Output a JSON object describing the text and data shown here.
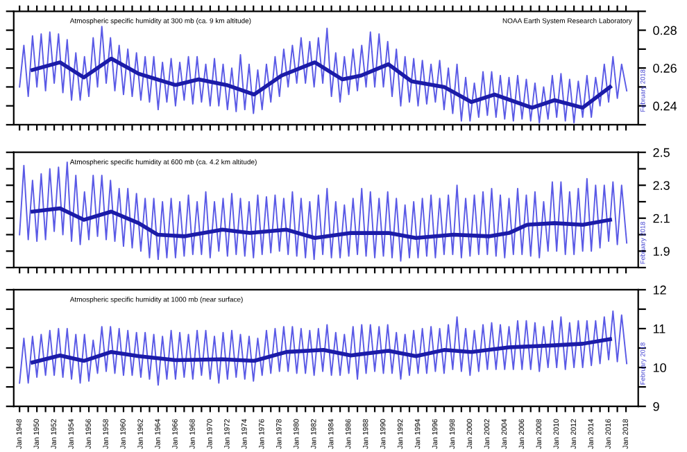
{
  "chart_data": [
    {
      "type": "line",
      "title": "Atmospheric specific humidity at 300 mb (ca. 9 km altitude)",
      "tick_labels": "y",
      "xlim": [
        "1947-05",
        "2019-06"
      ],
      "ylim": [
        0.23,
        0.29
      ],
      "x": [
        "1948-01",
        "1948-07",
        "1949-01",
        "1949-07",
        "1950-01",
        "1950-07",
        "1951-01",
        "1951-07",
        "1952-01",
        "1952-07",
        "1953-01",
        "1953-07",
        "1954-01",
        "1954-07",
        "1955-01",
        "1955-07",
        "1956-01",
        "1956-07",
        "1957-01",
        "1957-07",
        "1958-01",
        "1958-07",
        "1959-01",
        "1959-07",
        "1960-01",
        "1960-07",
        "1961-01",
        "1961-07",
        "1962-01",
        "1962-07",
        "1963-01",
        "1963-07",
        "1964-01",
        "1964-07",
        "1965-01",
        "1965-07",
        "1966-01",
        "1966-07",
        "1967-01",
        "1967-07",
        "1968-01",
        "1968-07",
        "1969-01",
        "1969-07",
        "1970-01",
        "1970-07",
        "1971-01",
        "1971-07",
        "1972-01",
        "1972-07",
        "1973-01",
        "1973-07",
        "1974-01",
        "1974-07",
        "1975-01",
        "1975-07",
        "1976-01",
        "1976-07",
        "1977-01",
        "1977-07",
        "1978-01",
        "1978-07",
        "1979-01",
        "1979-07",
        "1980-01",
        "1980-07",
        "1981-01",
        "1981-07",
        "1982-01",
        "1982-07",
        "1983-01",
        "1983-07",
        "1984-01",
        "1984-07",
        "1985-01",
        "1985-07",
        "1986-01",
        "1986-07",
        "1987-01",
        "1987-07",
        "1988-01",
        "1988-07",
        "1989-01",
        "1989-07",
        "1990-01",
        "1990-07",
        "1991-01",
        "1991-07",
        "1992-01",
        "1992-07",
        "1993-01",
        "1993-07",
        "1994-01",
        "1994-07",
        "1995-01",
        "1995-07",
        "1996-01",
        "1996-07",
        "1997-01",
        "1997-07",
        "1998-01",
        "1998-07",
        "1999-01",
        "1999-07",
        "2000-01",
        "2000-07",
        "2001-01",
        "2001-07",
        "2002-01",
        "2002-07",
        "2003-01",
        "2003-07",
        "2004-01",
        "2004-07",
        "2005-01",
        "2005-07",
        "2006-01",
        "2006-07",
        "2007-01",
        "2007-07",
        "2008-01",
        "2008-07",
        "2009-01",
        "2009-07",
        "2010-01",
        "2010-07",
        "2011-01",
        "2011-07",
        "2012-01",
        "2012-07",
        "2013-01",
        "2013-07",
        "2014-01",
        "2014-07",
        "2015-01",
        "2015-07",
        "2016-01",
        "2016-07",
        "2017-01",
        "2017-07",
        "2018-02"
      ],
      "xticks": [
        {
          "value": "1948-01",
          "label": null
        },
        {
          "value": "1949-01",
          "label": null
        },
        {
          "value": "1950-01",
          "label": null
        },
        {
          "value": "1951-01",
          "label": null
        },
        {
          "value": "1952-01",
          "label": null
        },
        {
          "value": "1953-01",
          "label": null
        },
        {
          "value": "1954-01",
          "label": null
        },
        {
          "value": "1955-01",
          "label": null
        },
        {
          "value": "1956-01",
          "label": null
        },
        {
          "value": "1957-01",
          "label": null
        },
        {
          "value": "1958-01",
          "label": null
        },
        {
          "value": "1959-01",
          "label": null
        },
        {
          "value": "1960-01",
          "label": null
        },
        {
          "value": "1961-01",
          "label": null
        },
        {
          "value": "1962-01",
          "label": null
        },
        {
          "value": "1963-01",
          "label": null
        },
        {
          "value": "1964-01",
          "label": null
        },
        {
          "value": "1965-01",
          "label": null
        },
        {
          "value": "1966-01",
          "label": null
        },
        {
          "value": "1967-01",
          "label": null
        },
        {
          "value": "1968-01",
          "label": null
        },
        {
          "value": "1969-01",
          "label": null
        },
        {
          "value": "1970-01",
          "label": null
        },
        {
          "value": "1971-01",
          "label": null
        },
        {
          "value": "1972-01",
          "label": null
        },
        {
          "value": "1973-01",
          "label": null
        },
        {
          "value": "1974-01",
          "label": null
        },
        {
          "value": "1975-01",
          "label": null
        },
        {
          "value": "1976-01",
          "label": null
        },
        {
          "value": "1977-01",
          "label": null
        },
        {
          "value": "1978-01",
          "label": null
        },
        {
          "value": "1979-01",
          "label": null
        },
        {
          "value": "1980-01",
          "label": null
        },
        {
          "value": "1981-01",
          "label": null
        },
        {
          "value": "1982-01",
          "label": null
        },
        {
          "value": "1983-01",
          "label": null
        },
        {
          "value": "1984-01",
          "label": null
        },
        {
          "value": "1985-01",
          "label": null
        },
        {
          "value": "1986-01",
          "label": null
        },
        {
          "value": "1987-01",
          "label": null
        },
        {
          "value": "1988-01",
          "label": null
        },
        {
          "value": "1989-01",
          "label": null
        },
        {
          "value": "1990-01",
          "label": null
        },
        {
          "value": "1991-01",
          "label": null
        },
        {
          "value": "1992-01",
          "label": null
        },
        {
          "value": "1993-01",
          "label": null
        },
        {
          "value": "1994-01",
          "label": null
        },
        {
          "value": "1995-01",
          "label": null
        },
        {
          "value": "1996-01",
          "label": null
        },
        {
          "value": "1997-01",
          "label": null
        },
        {
          "value": "1998-01",
          "label": null
        },
        {
          "value": "1999-01",
          "label": null
        },
        {
          "value": "2000-01",
          "label": null
        },
        {
          "value": "2001-01",
          "label": null
        },
        {
          "value": "2002-01",
          "label": null
        },
        {
          "value": "2003-01",
          "label": null
        },
        {
          "value": "2004-01",
          "label": null
        },
        {
          "value": "2005-01",
          "label": null
        },
        {
          "value": "2006-01",
          "label": null
        },
        {
          "value": "2007-01",
          "label": null
        },
        {
          "value": "2008-01",
          "label": null
        },
        {
          "value": "2009-01",
          "label": null
        },
        {
          "value": "2010-01",
          "label": null
        },
        {
          "value": "2011-01",
          "label": null
        },
        {
          "value": "2012-01",
          "label": null
        },
        {
          "value": "2013-01",
          "label": null
        },
        {
          "value": "2014-01",
          "label": null
        },
        {
          "value": "2015-01",
          "label": null
        },
        {
          "value": "2016-01",
          "label": null
        },
        {
          "value": "2017-01",
          "label": null
        },
        {
          "value": "2018-01",
          "label": null
        }
      ],
      "yticks": [
        {
          "value": 0.23,
          "label": null
        },
        {
          "value": 0.24,
          "label": "0.24"
        },
        {
          "value": 0.25,
          "label": null
        },
        {
          "value": 0.26,
          "label": "0.26"
        },
        {
          "value": 0.27,
          "label": null
        },
        {
          "value": 0.28,
          "label": "0.28"
        },
        {
          "value": 0.29,
          "label": null
        }
      ],
      "annotations": [
        "NOAA Earth System Research Laboratory",
        {
          "text": "February 2018",
          "x": "2018-02",
          "y": 0.248
        }
      ],
      "series": [
        {
          "color": "#5a5ae6",
          "values": [
            0.25,
            0.272,
            0.245,
            0.277,
            0.25,
            0.278,
            0.248,
            0.279,
            0.252,
            0.278,
            0.247,
            0.275,
            0.243,
            0.268,
            0.243,
            0.266,
            0.245,
            0.276,
            0.25,
            0.282,
            0.252,
            0.276,
            0.248,
            0.272,
            0.246,
            0.27,
            0.245,
            0.268,
            0.243,
            0.266,
            0.242,
            0.266,
            0.238,
            0.263,
            0.242,
            0.265,
            0.24,
            0.263,
            0.243,
            0.266,
            0.241,
            0.266,
            0.242,
            0.262,
            0.24,
            0.265,
            0.24,
            0.262,
            0.238,
            0.26,
            0.237,
            0.267,
            0.238,
            0.262,
            0.236,
            0.259,
            0.238,
            0.262,
            0.242,
            0.266,
            0.245,
            0.27,
            0.25,
            0.272,
            0.252,
            0.276,
            0.252,
            0.274,
            0.25,
            0.276,
            0.252,
            0.281,
            0.245,
            0.268,
            0.242,
            0.266,
            0.246,
            0.27,
            0.248,
            0.272,
            0.25,
            0.279,
            0.25,
            0.278,
            0.25,
            0.274,
            0.245,
            0.27,
            0.24,
            0.266,
            0.242,
            0.265,
            0.24,
            0.264,
            0.241,
            0.262,
            0.242,
            0.264,
            0.238,
            0.26,
            0.236,
            0.262,
            0.232,
            0.255,
            0.232,
            0.252,
            0.234,
            0.258,
            0.235,
            0.258,
            0.234,
            0.256,
            0.233,
            0.255,
            0.232,
            0.256,
            0.233,
            0.254,
            0.232,
            0.252,
            0.231,
            0.25,
            0.233,
            0.256,
            0.234,
            0.257,
            0.232,
            0.254,
            0.231,
            0.253,
            0.234,
            0.256,
            0.234,
            0.255,
            0.24,
            0.262,
            0.242,
            0.266,
            0.244,
            0.262,
            0.248
          ]
        },
        {
          "color": "#1c1ca8",
          "x": [
            "1949-07",
            "1952-09",
            "1955-06",
            "1958-08",
            "1961-10",
            "1966-01",
            "1968-09",
            "1971-12",
            "1975-02",
            "1978-04",
            "1982-02",
            "1985-04",
            "1987-06",
            "1990-08",
            "1993-04",
            "1997-01",
            "2000-03",
            "2002-11",
            "2007-03",
            "2009-10",
            "2013-01",
            "2016-03"
          ],
          "values": [
            0.259,
            0.263,
            0.255,
            0.265,
            0.257,
            0.251,
            0.254,
            0.251,
            0.246,
            0.256,
            0.263,
            0.254,
            0.256,
            0.262,
            0.253,
            0.25,
            0.242,
            0.246,
            0.239,
            0.243,
            0.239,
            0.25
          ]
        }
      ]
    },
    {
      "type": "line",
      "title": "Atmospheric specific humidity at 600 mb (ca. 4.2 km altitude)",
      "tick_labels": "y",
      "xlim": [
        "1947-05",
        "2019-06"
      ],
      "ylim": [
        1.8,
        2.5
      ],
      "x": [
        "1948-01",
        "1948-07",
        "1949-01",
        "1949-07",
        "1950-01",
        "1950-07",
        "1951-01",
        "1951-07",
        "1952-01",
        "1952-07",
        "1953-01",
        "1953-07",
        "1954-01",
        "1954-07",
        "1955-01",
        "1955-07",
        "1956-01",
        "1956-07",
        "1957-01",
        "1957-07",
        "1958-01",
        "1958-07",
        "1959-01",
        "1959-07",
        "1960-01",
        "1960-07",
        "1961-01",
        "1961-07",
        "1962-01",
        "1962-07",
        "1963-01",
        "1963-07",
        "1964-01",
        "1964-07",
        "1965-01",
        "1965-07",
        "1966-01",
        "1966-07",
        "1967-01",
        "1967-07",
        "1968-01",
        "1968-07",
        "1969-01",
        "1969-07",
        "1970-01",
        "1970-07",
        "1971-01",
        "1971-07",
        "1972-01",
        "1972-07",
        "1973-01",
        "1973-07",
        "1974-01",
        "1974-07",
        "1975-01",
        "1975-07",
        "1976-01",
        "1976-07",
        "1977-01",
        "1977-07",
        "1978-01",
        "1978-07",
        "1979-01",
        "1979-07",
        "1980-01",
        "1980-07",
        "1981-01",
        "1981-07",
        "1982-01",
        "1982-07",
        "1983-01",
        "1983-07",
        "1984-01",
        "1984-07",
        "1985-01",
        "1985-07",
        "1986-01",
        "1986-07",
        "1987-01",
        "1987-07",
        "1988-01",
        "1988-07",
        "1989-01",
        "1989-07",
        "1990-01",
        "1990-07",
        "1991-01",
        "1991-07",
        "1992-01",
        "1992-07",
        "1993-01",
        "1993-07",
        "1994-01",
        "1994-07",
        "1995-01",
        "1995-07",
        "1996-01",
        "1996-07",
        "1997-01",
        "1997-07",
        "1998-01",
        "1998-07",
        "1999-01",
        "1999-07",
        "2000-01",
        "2000-07",
        "2001-01",
        "2001-07",
        "2002-01",
        "2002-07",
        "2003-01",
        "2003-07",
        "2004-01",
        "2004-07",
        "2005-01",
        "2005-07",
        "2006-01",
        "2006-07",
        "2007-01",
        "2007-07",
        "2008-01",
        "2008-07",
        "2009-01",
        "2009-07",
        "2010-01",
        "2010-07",
        "2011-01",
        "2011-07",
        "2012-01",
        "2012-07",
        "2013-01",
        "2013-07",
        "2014-01",
        "2014-07",
        "2015-01",
        "2015-07",
        "2016-01",
        "2016-07",
        "2017-01",
        "2017-07",
        "2018-02"
      ],
      "xticks": [
        {
          "value": "1948-01",
          "label": null
        },
        {
          "value": "1949-01",
          "label": null
        },
        {
          "value": "1950-01",
          "label": null
        },
        {
          "value": "1951-01",
          "label": null
        },
        {
          "value": "1952-01",
          "label": null
        },
        {
          "value": "1953-01",
          "label": null
        },
        {
          "value": "1954-01",
          "label": null
        },
        {
          "value": "1955-01",
          "label": null
        },
        {
          "value": "1956-01",
          "label": null
        },
        {
          "value": "1957-01",
          "label": null
        },
        {
          "value": "1958-01",
          "label": null
        },
        {
          "value": "1959-01",
          "label": null
        },
        {
          "value": "1960-01",
          "label": null
        },
        {
          "value": "1961-01",
          "label": null
        },
        {
          "value": "1962-01",
          "label": null
        },
        {
          "value": "1963-01",
          "label": null
        },
        {
          "value": "1964-01",
          "label": null
        },
        {
          "value": "1965-01",
          "label": null
        },
        {
          "value": "1966-01",
          "label": null
        },
        {
          "value": "1967-01",
          "label": null
        },
        {
          "value": "1968-01",
          "label": null
        },
        {
          "value": "1969-01",
          "label": null
        },
        {
          "value": "1970-01",
          "label": null
        },
        {
          "value": "1971-01",
          "label": null
        },
        {
          "value": "1972-01",
          "label": null
        },
        {
          "value": "1973-01",
          "label": null
        },
        {
          "value": "1974-01",
          "label": null
        },
        {
          "value": "1975-01",
          "label": null
        },
        {
          "value": "1976-01",
          "label": null
        },
        {
          "value": "1977-01",
          "label": null
        },
        {
          "value": "1978-01",
          "label": null
        },
        {
          "value": "1979-01",
          "label": null
        },
        {
          "value": "1980-01",
          "label": null
        },
        {
          "value": "1981-01",
          "label": null
        },
        {
          "value": "1982-01",
          "label": null
        },
        {
          "value": "1983-01",
          "label": null
        },
        {
          "value": "1984-01",
          "label": null
        },
        {
          "value": "1985-01",
          "label": null
        },
        {
          "value": "1986-01",
          "label": null
        },
        {
          "value": "1987-01",
          "label": null
        },
        {
          "value": "1988-01",
          "label": null
        },
        {
          "value": "1989-01",
          "label": null
        },
        {
          "value": "1990-01",
          "label": null
        },
        {
          "value": "1991-01",
          "label": null
        },
        {
          "value": "1992-01",
          "label": null
        },
        {
          "value": "1993-01",
          "label": null
        },
        {
          "value": "1994-01",
          "label": null
        },
        {
          "value": "1995-01",
          "label": null
        },
        {
          "value": "1996-01",
          "label": null
        },
        {
          "value": "1997-01",
          "label": null
        },
        {
          "value": "1998-01",
          "label": null
        },
        {
          "value": "1999-01",
          "label": null
        },
        {
          "value": "2000-01",
          "label": null
        },
        {
          "value": "2001-01",
          "label": null
        },
        {
          "value": "2002-01",
          "label": null
        },
        {
          "value": "2003-01",
          "label": null
        },
        {
          "value": "2004-01",
          "label": null
        },
        {
          "value": "2005-01",
          "label": null
        },
        {
          "value": "2006-01",
          "label": null
        },
        {
          "value": "2007-01",
          "label": null
        },
        {
          "value": "2008-01",
          "label": null
        },
        {
          "value": "2009-01",
          "label": null
        },
        {
          "value": "2010-01",
          "label": null
        },
        {
          "value": "2011-01",
          "label": null
        },
        {
          "value": "2012-01",
          "label": null
        },
        {
          "value": "2013-01",
          "label": null
        },
        {
          "value": "2014-01",
          "label": null
        },
        {
          "value": "2015-01",
          "label": null
        },
        {
          "value": "2016-01",
          "label": null
        },
        {
          "value": "2017-01",
          "label": null
        },
        {
          "value": "2018-01",
          "label": null
        }
      ],
      "yticks": [
        {
          "value": 1.8,
          "label": null
        },
        {
          "value": 1.9,
          "label": "1.9"
        },
        {
          "value": 2.0,
          "label": null
        },
        {
          "value": 2.1,
          "label": "2.1"
        },
        {
          "value": 2.2,
          "label": null
        },
        {
          "value": 2.3,
          "label": "2.3"
        },
        {
          "value": 2.4,
          "label": null
        },
        {
          "value": 2.5,
          "label": "2.5"
        }
      ],
      "annotations": [
        {
          "text": "February 2018",
          "x": "2018-02",
          "y": 1.95
        }
      ],
      "series": [
        {
          "color": "#5a5ae6",
          "values": [
            2.0,
            2.42,
            1.97,
            2.33,
            1.96,
            2.37,
            1.97,
            2.4,
            2.02,
            2.41,
            2.0,
            2.44,
            1.96,
            2.36,
            1.94,
            2.26,
            1.97,
            2.36,
            1.99,
            2.36,
            1.97,
            2.33,
            1.96,
            2.28,
            1.93,
            2.28,
            1.92,
            2.25,
            1.9,
            2.22,
            1.86,
            2.22,
            1.85,
            2.2,
            1.86,
            2.22,
            1.86,
            2.2,
            1.87,
            2.24,
            1.88,
            2.2,
            1.88,
            2.26,
            1.86,
            2.2,
            1.9,
            2.22,
            1.87,
            2.25,
            1.88,
            2.22,
            1.87,
            2.2,
            1.86,
            2.24,
            1.88,
            2.23,
            1.89,
            2.24,
            1.9,
            2.22,
            1.88,
            2.26,
            1.87,
            2.22,
            1.86,
            2.2,
            1.85,
            2.24,
            1.88,
            2.28,
            1.86,
            2.2,
            1.86,
            2.18,
            1.87,
            2.22,
            1.88,
            2.28,
            1.87,
            2.26,
            1.86,
            2.22,
            1.87,
            2.26,
            1.86,
            2.22,
            1.84,
            2.18,
            1.86,
            2.2,
            1.86,
            2.22,
            1.87,
            2.24,
            1.86,
            2.22,
            1.88,
            2.24,
            1.88,
            2.3,
            1.86,
            2.22,
            1.87,
            2.24,
            1.88,
            2.26,
            1.88,
            2.28,
            1.87,
            2.24,
            1.86,
            2.22,
            1.88,
            2.28,
            1.88,
            2.24,
            1.87,
            2.26,
            1.86,
            2.2,
            1.9,
            2.32,
            1.9,
            2.32,
            1.88,
            2.26,
            1.88,
            2.28,
            1.9,
            2.34,
            1.9,
            2.3,
            1.92,
            2.3,
            1.96,
            2.32,
            1.94,
            2.3,
            1.95
          ]
        },
        {
          "color": "#1c1ca8",
          "x": [
            "1949-07",
            "1952-09",
            "1955-06",
            "1958-08",
            "1961-10",
            "1963-12",
            "1967-02",
            "1971-06",
            "1974-08",
            "1978-11",
            "1982-02",
            "1986-04",
            "1990-08",
            "1993-10",
            "1998-02",
            "2002-04",
            "2004-07",
            "2006-08",
            "2009-10",
            "2013-01",
            "2016-03"
          ],
          "values": [
            2.14,
            2.16,
            2.09,
            2.14,
            2.07,
            2.0,
            1.99,
            2.03,
            2.01,
            2.03,
            1.98,
            2.01,
            2.01,
            1.98,
            2.0,
            1.99,
            2.01,
            2.06,
            2.07,
            2.06,
            2.09
          ]
        }
      ]
    },
    {
      "type": "line",
      "title": "Atmospheric specific humidity at 1000 mb (near surface)",
      "xlim": [
        "1947-05",
        "2019-06"
      ],
      "ylim": [
        9,
        12
      ],
      "x": [
        "1948-01",
        "1948-07",
        "1949-01",
        "1949-07",
        "1950-01",
        "1950-07",
        "1951-01",
        "1951-07",
        "1952-01",
        "1952-07",
        "1953-01",
        "1953-07",
        "1954-01",
        "1954-07",
        "1955-01",
        "1955-07",
        "1956-01",
        "1956-07",
        "1957-01",
        "1957-07",
        "1958-01",
        "1958-07",
        "1959-01",
        "1959-07",
        "1960-01",
        "1960-07",
        "1961-01",
        "1961-07",
        "1962-01",
        "1962-07",
        "1963-01",
        "1963-07",
        "1964-01",
        "1964-07",
        "1965-01",
        "1965-07",
        "1966-01",
        "1966-07",
        "1967-01",
        "1967-07",
        "1968-01",
        "1968-07",
        "1969-01",
        "1969-07",
        "1970-01",
        "1970-07",
        "1971-01",
        "1971-07",
        "1972-01",
        "1972-07",
        "1973-01",
        "1973-07",
        "1974-01",
        "1974-07",
        "1975-01",
        "1975-07",
        "1976-01",
        "1976-07",
        "1977-01",
        "1977-07",
        "1978-01",
        "1978-07",
        "1979-01",
        "1979-07",
        "1980-01",
        "1980-07",
        "1981-01",
        "1981-07",
        "1982-01",
        "1982-07",
        "1983-01",
        "1983-07",
        "1984-01",
        "1984-07",
        "1985-01",
        "1985-07",
        "1986-01",
        "1986-07",
        "1987-01",
        "1987-07",
        "1988-01",
        "1988-07",
        "1989-01",
        "1989-07",
        "1990-01",
        "1990-07",
        "1991-01",
        "1991-07",
        "1992-01",
        "1992-07",
        "1993-01",
        "1993-07",
        "1994-01",
        "1994-07",
        "1995-01",
        "1995-07",
        "1996-01",
        "1996-07",
        "1997-01",
        "1997-07",
        "1998-01",
        "1998-07",
        "1999-01",
        "1999-07",
        "2000-01",
        "2000-07",
        "2001-01",
        "2001-07",
        "2002-01",
        "2002-07",
        "2003-01",
        "2003-07",
        "2004-01",
        "2004-07",
        "2005-01",
        "2005-07",
        "2006-01",
        "2006-07",
        "2007-01",
        "2007-07",
        "2008-01",
        "2008-07",
        "2009-01",
        "2009-07",
        "2010-01",
        "2010-07",
        "2011-01",
        "2011-07",
        "2012-01",
        "2012-07",
        "2013-01",
        "2013-07",
        "2014-01",
        "2014-07",
        "2015-01",
        "2015-07",
        "2016-01",
        "2016-07",
        "2017-01",
        "2017-07",
        "2018-02"
      ],
      "xticks": [
        {
          "value": "1948-01",
          "label": "Jan 1948"
        },
        {
          "value": "1949-01",
          "label": null
        },
        {
          "value": "1950-01",
          "label": "Jan 1950"
        },
        {
          "value": "1951-01",
          "label": null
        },
        {
          "value": "1952-01",
          "label": "Jan 1952"
        },
        {
          "value": "1953-01",
          "label": null
        },
        {
          "value": "1954-01",
          "label": "Jan 1954"
        },
        {
          "value": "1955-01",
          "label": null
        },
        {
          "value": "1956-01",
          "label": "Jan 1956"
        },
        {
          "value": "1957-01",
          "label": null
        },
        {
          "value": "1958-01",
          "label": "Jan 1958"
        },
        {
          "value": "1959-01",
          "label": null
        },
        {
          "value": "1960-01",
          "label": "Jan 1960"
        },
        {
          "value": "1961-01",
          "label": null
        },
        {
          "value": "1962-01",
          "label": "Jan 1962"
        },
        {
          "value": "1963-01",
          "label": null
        },
        {
          "value": "1964-01",
          "label": "Jan 1964"
        },
        {
          "value": "1965-01",
          "label": null
        },
        {
          "value": "1966-01",
          "label": "Jan 1966"
        },
        {
          "value": "1967-01",
          "label": null
        },
        {
          "value": "1968-01",
          "label": "Jan 1968"
        },
        {
          "value": "1969-01",
          "label": null
        },
        {
          "value": "1970-01",
          "label": "Jan 1970"
        },
        {
          "value": "1971-01",
          "label": null
        },
        {
          "value": "1972-01",
          "label": "Jan 1972"
        },
        {
          "value": "1973-01",
          "label": null
        },
        {
          "value": "1974-01",
          "label": "Jan 1974"
        },
        {
          "value": "1975-01",
          "label": null
        },
        {
          "value": "1976-01",
          "label": "Jan 1976"
        },
        {
          "value": "1977-01",
          "label": null
        },
        {
          "value": "1978-01",
          "label": "Jan 1978"
        },
        {
          "value": "1979-01",
          "label": null
        },
        {
          "value": "1980-01",
          "label": "Jan 1980"
        },
        {
          "value": "1981-01",
          "label": null
        },
        {
          "value": "1982-01",
          "label": "Jan 1982"
        },
        {
          "value": "1983-01",
          "label": null
        },
        {
          "value": "1984-01",
          "label": "Jan 1984"
        },
        {
          "value": "1985-01",
          "label": null
        },
        {
          "value": "1986-01",
          "label": "Jan 1986"
        },
        {
          "value": "1987-01",
          "label": null
        },
        {
          "value": "1988-01",
          "label": "Jan 1988"
        },
        {
          "value": "1989-01",
          "label": null
        },
        {
          "value": "1990-01",
          "label": "Jan 1990"
        },
        {
          "value": "1991-01",
          "label": null
        },
        {
          "value": "1992-01",
          "label": "Jan 1992"
        },
        {
          "value": "1993-01",
          "label": null
        },
        {
          "value": "1994-01",
          "label": "Jan 1994"
        },
        {
          "value": "1995-01",
          "label": null
        },
        {
          "value": "1996-01",
          "label": "Jan 1996"
        },
        {
          "value": "1997-01",
          "label": null
        },
        {
          "value": "1998-01",
          "label": "Jan 1998"
        },
        {
          "value": "1999-01",
          "label": null
        },
        {
          "value": "2000-01",
          "label": "Jan 2000"
        },
        {
          "value": "2001-01",
          "label": null
        },
        {
          "value": "2002-01",
          "label": "Jan 2002"
        },
        {
          "value": "2003-01",
          "label": null
        },
        {
          "value": "2004-01",
          "label": "Jan 2004"
        },
        {
          "value": "2005-01",
          "label": null
        },
        {
          "value": "2006-01",
          "label": "Jan 2006"
        },
        {
          "value": "2007-01",
          "label": null
        },
        {
          "value": "2008-01",
          "label": "Jan 2008"
        },
        {
          "value": "2009-01",
          "label": null
        },
        {
          "value": "2010-01",
          "label": "Jan 2010"
        },
        {
          "value": "2011-01",
          "label": null
        },
        {
          "value": "2012-01",
          "label": "Jan 2012"
        },
        {
          "value": "2013-01",
          "label": null
        },
        {
          "value": "2014-01",
          "label": "Jan 2014"
        },
        {
          "value": "2015-01",
          "label": null
        },
        {
          "value": "2016-01",
          "label": "Jan 2016"
        },
        {
          "value": "2017-01",
          "label": null
        },
        {
          "value": "2018-01",
          "label": "Jan 2018"
        }
      ],
      "yticks": [
        {
          "value": 9,
          "label": "9"
        },
        {
          "value": 9.5,
          "label": null
        },
        {
          "value": 10,
          "label": "10"
        },
        {
          "value": 10.5,
          "label": null
        },
        {
          "value": 11,
          "label": "11"
        },
        {
          "value": 11.5,
          "label": null
        },
        {
          "value": 12,
          "label": "12"
        }
      ],
      "annotations": [
        {
          "text": "February 2018",
          "x": "2018-02",
          "y": 10.1
        }
      ],
      "series": [
        {
          "color": "#5a5ae6",
          "values": [
            9.6,
            10.75,
            9.6,
            10.8,
            9.75,
            10.85,
            9.8,
            10.95,
            9.8,
            11.0,
            9.75,
            11.0,
            9.7,
            10.85,
            9.6,
            10.85,
            9.65,
            10.7,
            9.85,
            11.05,
            9.9,
            11.05,
            9.85,
            11.0,
            9.8,
            10.95,
            9.8,
            10.9,
            9.75,
            10.9,
            9.7,
            10.85,
            9.55,
            10.8,
            9.7,
            10.95,
            9.7,
            10.9,
            9.75,
            10.85,
            9.7,
            10.95,
            9.8,
            10.95,
            9.7,
            10.8,
            9.6,
            10.9,
            9.7,
            10.95,
            9.75,
            10.85,
            9.7,
            10.8,
            9.65,
            10.75,
            9.8,
            10.95,
            9.85,
            11.0,
            9.9,
            11.05,
            9.9,
            11.05,
            9.85,
            11.0,
            9.85,
            10.95,
            9.8,
            11.0,
            9.9,
            11.1,
            9.8,
            10.9,
            9.8,
            10.85,
            9.85,
            11.05,
            9.7,
            11.1,
            9.85,
            11.1,
            9.9,
            11.05,
            9.85,
            11.1,
            9.85,
            10.9,
            9.7,
            10.85,
            9.8,
            10.95,
            9.85,
            11.0,
            9.85,
            11.05,
            9.9,
            11.0,
            9.85,
            11.1,
            9.95,
            11.3,
            9.9,
            11.0,
            9.8,
            10.95,
            9.9,
            11.1,
            9.95,
            11.15,
            9.95,
            11.1,
            9.95,
            11.05,
            9.95,
            11.2,
            9.95,
            11.2,
            9.95,
            11.15,
            9.9,
            11.05,
            10.0,
            11.2,
            10.0,
            11.3,
            9.95,
            11.15,
            10.0,
            11.2,
            10.0,
            11.2,
            10.05,
            11.2,
            10.1,
            11.3,
            10.2,
            11.45,
            10.15,
            11.35,
            10.1
          ]
        },
        {
          "color": "#1c1ca8",
          "x": [
            "1949-07",
            "1952-09",
            "1955-06",
            "1958-08",
            "1961-10",
            "1966-01",
            "1971-06",
            "1975-02",
            "1978-11",
            "1983-02",
            "1986-04",
            "1990-08",
            "1993-10",
            "1997-01",
            "2000-03",
            "2004-07",
            "2009-10",
            "2013-01",
            "2016-03"
          ],
          "values": [
            10.13,
            10.31,
            10.17,
            10.4,
            10.29,
            10.19,
            10.21,
            10.17,
            10.4,
            10.45,
            10.31,
            10.43,
            10.29,
            10.45,
            10.4,
            10.52,
            10.57,
            10.61,
            10.73
          ]
        }
      ]
    }
  ]
}
